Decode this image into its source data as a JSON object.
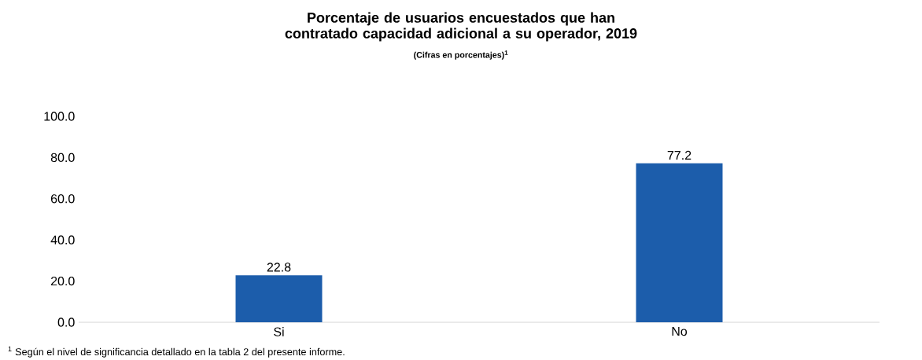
{
  "chart_data": {
    "type": "bar",
    "title": "Porcentaje de usuarios encuestados que han contratado capacidad adicional a su operador, 2019",
    "subtitle": "(Cifras en porcentajes)$^{1}$",
    "categories": [
      "Si",
      "No"
    ],
    "values": [
      22.8,
      77.2
    ],
    "color": "#1c5dab",
    "ylim": [
      0,
      100
    ],
    "yticks": [
      {
        "value": 0,
        "label": "0.0"
      },
      {
        "value": 20,
        "label": "20.0"
      },
      {
        "value": 40,
        "label": "40.0"
      },
      {
        "value": 60,
        "label": "60.0"
      },
      {
        "value": 80,
        "label": "80.0"
      },
      {
        "value": 100,
        "label": "100.0"
      }
    ],
    "data_labels": true,
    "grid": false,
    "annotations": [
      "$^{1}$ Según el nivel de significancia detallado en la tabla 2 del presente informe."
    ]
  }
}
